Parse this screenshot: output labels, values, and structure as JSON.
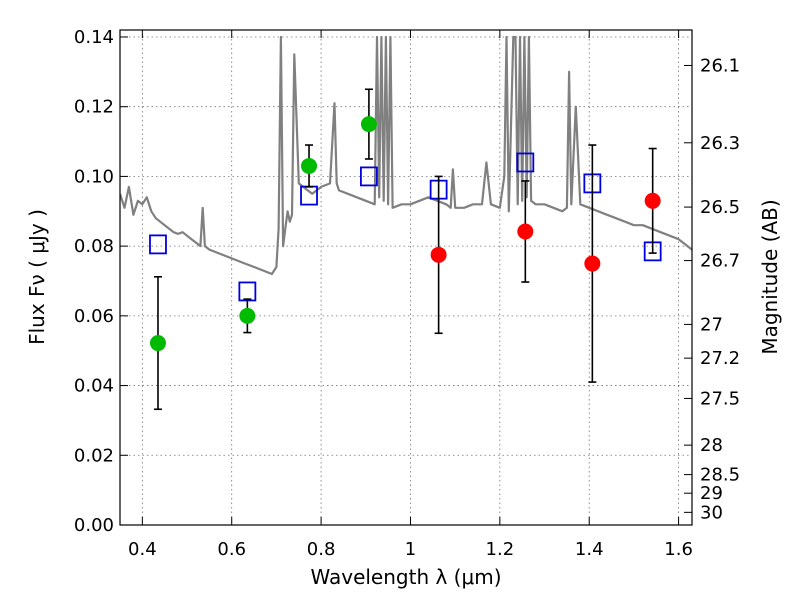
{
  "chart_data": {
    "type": "scatter",
    "xlabel": "Wavelength  λ (μm)",
    "ylabel": "Flux  Fν  ( μJy )",
    "ylabel_right": "Magnitude (AB)",
    "xlim": [
      0.35,
      1.63
    ],
    "ylim": [
      0.0,
      0.142
    ],
    "grid": true,
    "x_ticks": [
      {
        "value": 0.4,
        "label": "0.4"
      },
      {
        "value": 0.6,
        "label": "0.6"
      },
      {
        "value": 0.8,
        "label": "0.8"
      },
      {
        "value": 1.0,
        "label": "1"
      },
      {
        "value": 1.2,
        "label": "1.2"
      },
      {
        "value": 1.4,
        "label": "1.4"
      },
      {
        "value": 1.6,
        "label": "1.6"
      }
    ],
    "y_ticks": [
      {
        "value": 0.0,
        "label": "0.00"
      },
      {
        "value": 0.02,
        "label": "0.02"
      },
      {
        "value": 0.04,
        "label": "0.04"
      },
      {
        "value": 0.06,
        "label": "0.06"
      },
      {
        "value": 0.08,
        "label": "0.08"
      },
      {
        "value": 0.1,
        "label": "0.10"
      },
      {
        "value": 0.12,
        "label": "0.12"
      },
      {
        "value": 0.14,
        "label": "0.14"
      }
    ],
    "y2_ticks": [
      {
        "value": 26.1,
        "label": "26.1"
      },
      {
        "value": 26.3,
        "label": "26.3"
      },
      {
        "value": 26.5,
        "label": "26.5"
      },
      {
        "value": 26.7,
        "label": "26.7"
      },
      {
        "value": 27.0,
        "label": "27"
      },
      {
        "value": 27.2,
        "label": "27.2"
      },
      {
        "value": 27.5,
        "label": "27.5"
      },
      {
        "value": 28.0,
        "label": "28"
      },
      {
        "value": 28.5,
        "label": "28.5"
      },
      {
        "value": 29.0,
        "label": "29"
      },
      {
        "value": 30.0,
        "label": "30"
      }
    ],
    "series": [
      {
        "kind": "model_spectrum",
        "color": "#808080",
        "x": [
          0.35,
          0.36,
          0.37,
          0.38,
          0.39,
          0.4,
          0.41,
          0.42,
          0.43,
          0.44,
          0.45,
          0.46,
          0.47,
          0.48,
          0.49,
          0.5,
          0.51,
          0.52,
          0.53,
          0.535,
          0.54,
          0.55,
          0.57,
          0.59,
          0.61,
          0.63,
          0.65,
          0.67,
          0.69,
          0.7,
          0.705,
          0.71,
          0.715,
          0.72,
          0.725,
          0.73,
          0.735,
          0.74,
          0.75,
          0.76,
          0.77,
          0.78,
          0.79,
          0.8,
          0.82,
          0.83,
          0.835,
          0.84,
          0.86,
          0.88,
          0.9,
          0.92,
          0.925,
          0.93,
          0.935,
          0.94,
          0.945,
          0.95,
          0.955,
          0.96,
          0.98,
          1.0,
          1.02,
          1.04,
          1.06,
          1.08,
          1.09,
          1.095,
          1.1,
          1.12,
          1.14,
          1.16,
          1.17,
          1.18,
          1.2,
          1.21,
          1.215,
          1.22,
          1.23,
          1.235,
          1.24,
          1.245,
          1.25,
          1.255,
          1.26,
          1.265,
          1.27,
          1.28,
          1.3,
          1.32,
          1.34,
          1.35,
          1.355,
          1.36,
          1.37,
          1.38,
          1.4,
          1.42,
          1.44,
          1.46,
          1.48,
          1.5,
          1.52,
          1.54,
          1.56,
          1.58,
          1.6,
          1.62,
          1.63
        ],
        "y": [
          0.095,
          0.091,
          0.097,
          0.089,
          0.093,
          0.092,
          0.094,
          0.09,
          0.088,
          0.087,
          0.086,
          0.085,
          0.084,
          0.0835,
          0.084,
          0.083,
          0.082,
          0.081,
          0.08,
          0.091,
          0.08,
          0.079,
          0.078,
          0.077,
          0.076,
          0.075,
          0.074,
          0.073,
          0.072,
          0.074,
          0.085,
          0.14,
          0.08,
          0.085,
          0.09,
          0.087,
          0.089,
          0.135,
          0.098,
          0.097,
          0.096,
          0.095,
          0.096,
          0.097,
          0.098,
          0.121,
          0.098,
          0.096,
          0.095,
          0.094,
          0.093,
          0.092,
          0.14,
          0.094,
          0.14,
          0.093,
          0.14,
          0.092,
          0.14,
          0.091,
          0.092,
          0.092,
          0.093,
          0.094,
          0.093,
          0.092,
          0.091,
          0.102,
          0.091,
          0.091,
          0.092,
          0.092,
          0.104,
          0.092,
          0.091,
          0.1,
          0.14,
          0.09,
          0.14,
          0.14,
          0.092,
          0.14,
          0.093,
          0.14,
          0.094,
          0.14,
          0.093,
          0.092,
          0.092,
          0.091,
          0.09,
          0.091,
          0.13,
          0.092,
          0.12,
          0.092,
          0.091,
          0.09,
          0.089,
          0.088,
          0.087,
          0.086,
          0.086,
          0.085,
          0.084,
          0.083,
          0.082,
          0.08,
          0.079
        ]
      },
      {
        "kind": "model_photometry",
        "marker": "open-square",
        "color": "#0000dd",
        "x": [
          0.435,
          0.635,
          0.773,
          0.907,
          1.063,
          1.257,
          1.407,
          1.542
        ],
        "y": [
          0.0805,
          0.067,
          0.0945,
          0.1,
          0.0962,
          0.104,
          0.098,
          0.0785
        ]
      },
      {
        "kind": "optical_photometry",
        "marker": "filled-circle",
        "color": "#00bb00",
        "x": [
          0.435,
          0.635,
          0.773,
          0.907
        ],
        "y": [
          0.0522,
          0.06,
          0.103,
          0.115
        ],
        "yerr": [
          0.019,
          0.0048,
          0.006,
          0.01
        ]
      },
      {
        "kind": "nir_photometry",
        "marker": "filled-circle",
        "color": "#ff0000",
        "x": [
          1.063,
          1.257,
          1.407,
          1.542
        ],
        "y": [
          0.0775,
          0.0842,
          0.075,
          0.093
        ],
        "yerr": [
          0.0225,
          0.0145,
          0.034,
          0.015
        ]
      }
    ]
  }
}
